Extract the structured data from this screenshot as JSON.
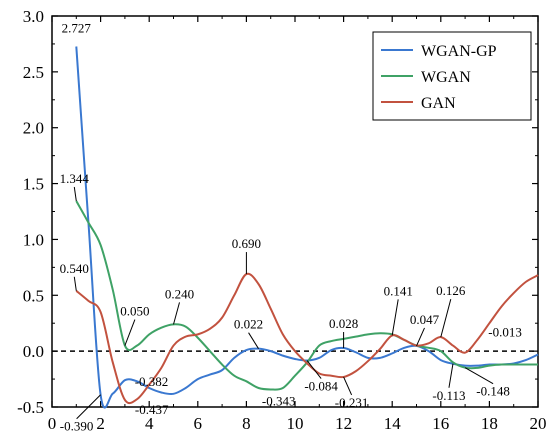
{
  "chart_data": {
    "type": "line",
    "title": "",
    "xlabel": "",
    "ylabel": "",
    "xlim": [
      0,
      20
    ],
    "ylim": [
      -0.5,
      3.0
    ],
    "xticks": [
      "0",
      "2",
      "4",
      "6",
      "8",
      "10",
      "12",
      "14",
      "16",
      "18",
      "20"
    ],
    "yticks": [
      "-0.5",
      "0.0",
      "0.5",
      "1.0",
      "1.5",
      "2.0",
      "2.5",
      "3.0"
    ],
    "grid": false,
    "legend_position": "top-right",
    "reference_line": {
      "y": 0,
      "style": "dashed",
      "color": "#000000"
    },
    "series": [
      {
        "name": "WGAN-GP",
        "color": "#3a78d0",
        "x": [
          1,
          1.5,
          2,
          2.5,
          3,
          3.5,
          4,
          4.5,
          5,
          5.5,
          6,
          6.5,
          7,
          7.5,
          8,
          8.5,
          9,
          9.5,
          10,
          10.5,
          11,
          11.5,
          12,
          12.5,
          13,
          13.5,
          14,
          14.5,
          15,
          15.5,
          16,
          16.5,
          17,
          17.5,
          18,
          18.5,
          19,
          19.5,
          20
        ],
        "y": [
          2.727,
          1.15,
          -0.39,
          -0.38,
          -0.26,
          -0.27,
          -0.33,
          -0.37,
          -0.382,
          -0.33,
          -0.25,
          -0.21,
          -0.17,
          -0.06,
          0.01,
          0.022,
          0.0,
          -0.04,
          -0.07,
          -0.084,
          -0.06,
          0.01,
          0.028,
          -0.01,
          -0.06,
          -0.06,
          -0.02,
          0.03,
          0.047,
          0.0,
          -0.08,
          -0.113,
          -0.13,
          -0.13,
          -0.12,
          -0.12,
          -0.11,
          -0.08,
          -0.03
        ]
      },
      {
        "name": "WGAN",
        "color": "#3fa266",
        "x": [
          1,
          1.5,
          2,
          2.5,
          3,
          3.5,
          4,
          4.5,
          5,
          5.5,
          6,
          6.5,
          7,
          7.5,
          8,
          8.5,
          9,
          9.5,
          10,
          10.5,
          11,
          11.5,
          12,
          12.5,
          13,
          13.5,
          14,
          14.5,
          15,
          15.5,
          16,
          16.5,
          17,
          17.5,
          18,
          18.5,
          19,
          19.5,
          20
        ],
        "y": [
          1.344,
          1.15,
          0.95,
          0.55,
          0.05,
          0.05,
          0.15,
          0.21,
          0.24,
          0.22,
          0.12,
          0.0,
          -0.12,
          -0.22,
          -0.27,
          -0.33,
          -0.343,
          -0.33,
          -0.22,
          -0.1,
          0.05,
          0.09,
          0.11,
          0.13,
          0.15,
          0.16,
          0.15,
          0.1,
          0.05,
          0.03,
          0.0,
          -0.1,
          -0.148,
          -0.15,
          -0.13,
          -0.12,
          -0.12,
          -0.12,
          -0.12
        ]
      },
      {
        "name": "GAN",
        "color": "#c2523f",
        "x": [
          1,
          1.5,
          2,
          2.5,
          3,
          3.5,
          4,
          4.5,
          5,
          5.5,
          6,
          6.5,
          7,
          7.5,
          8,
          8.5,
          9,
          9.5,
          10,
          10.5,
          11,
          11.5,
          12,
          12.5,
          13,
          13.5,
          14,
          14.5,
          15,
          15.5,
          16,
          16.5,
          17,
          17.5,
          18,
          18.5,
          19,
          19.5,
          20
        ],
        "y": [
          0.54,
          0.45,
          0.35,
          -0.1,
          -0.437,
          -0.43,
          -0.3,
          -0.15,
          0.05,
          0.13,
          0.15,
          0.2,
          0.3,
          0.5,
          0.69,
          0.6,
          0.38,
          0.15,
          0.0,
          -0.11,
          -0.2,
          -0.22,
          -0.231,
          -0.18,
          -0.09,
          0.02,
          0.141,
          0.1,
          0.05,
          0.07,
          0.126,
          0.05,
          -0.013,
          0.1,
          0.25,
          0.4,
          0.52,
          0.62,
          0.68
        ]
      }
    ],
    "annotations": [
      {
        "text": "2.727",
        "x": 1,
        "y": 2.727
      },
      {
        "text": "1.344",
        "x": 1,
        "y": 1.344
      },
      {
        "text": "0.540",
        "x": 1,
        "y": 0.54
      },
      {
        "text": "-0.390",
        "x": 2,
        "y": -0.39
      },
      {
        "text": "0.050",
        "x": 3,
        "y": 0.05
      },
      {
        "text": "-0.437",
        "x": 3,
        "y": -0.437
      },
      {
        "text": "0.240",
        "x": 5,
        "y": 0.24
      },
      {
        "text": "-0.382",
        "x": 5,
        "y": -0.382
      },
      {
        "text": "0.690",
        "x": 8,
        "y": 0.69
      },
      {
        "text": "0.022",
        "x": 8.5,
        "y": 0.022
      },
      {
        "text": "-0.343",
        "x": 9,
        "y": -0.343
      },
      {
        "text": "-0.084",
        "x": 10.5,
        "y": -0.084
      },
      {
        "text": "0.028",
        "x": 12,
        "y": 0.028
      },
      {
        "text": "-0.231",
        "x": 12,
        "y": -0.231
      },
      {
        "text": "0.141",
        "x": 14,
        "y": 0.141
      },
      {
        "text": "0.047",
        "x": 15,
        "y": 0.047
      },
      {
        "text": "0.126",
        "x": 16,
        "y": 0.126
      },
      {
        "text": "-0.113",
        "x": 16.5,
        "y": -0.113
      },
      {
        "text": "-0.013",
        "x": 17,
        "y": -0.013
      },
      {
        "text": "-0.148",
        "x": 17,
        "y": -0.148
      }
    ]
  }
}
